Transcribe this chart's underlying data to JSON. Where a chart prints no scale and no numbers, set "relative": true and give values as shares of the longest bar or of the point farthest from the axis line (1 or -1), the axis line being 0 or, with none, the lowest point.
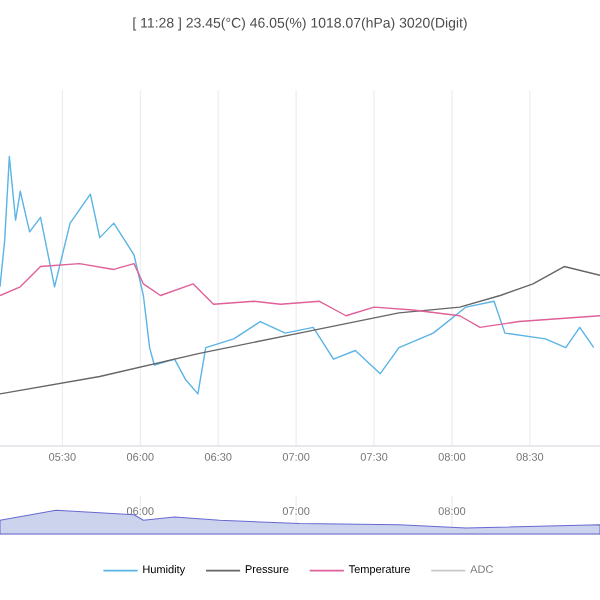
{
  "chart_data": [
    {
      "type": "line",
      "title": "[ 11:28 ] 23.45(°C) 46.05(%) 1018.07(hPa) 3020(Digit)",
      "relative": true,
      "grid": true,
      "legend": "bottom",
      "xlim": [
        5.1,
        8.95
      ],
      "xticks": [
        {
          "value": 5.5,
          "label": "05:30"
        },
        {
          "value": 6,
          "label": "06:00"
        },
        {
          "value": 6.5,
          "label": "06:30"
        },
        {
          "value": 7,
          "label": "07:00"
        },
        {
          "value": 7.5,
          "label": "07:30"
        },
        {
          "value": 8,
          "label": "08:00"
        },
        {
          "value": 8.5,
          "label": "08:30"
        }
      ],
      "series": [
        {
          "name": "Humidity",
          "color": "#5ab4e5",
          "x": [
            5.1,
            5.13,
            5.16,
            5.2,
            5.23,
            5.29,
            5.36,
            5.45,
            5.55,
            5.68,
            5.74,
            5.83,
            5.96,
            6.02,
            6.06,
            6.09,
            6.22,
            6.29,
            6.37,
            6.42,
            6.6,
            6.77,
            6.93,
            7.11,
            7.24,
            7.38,
            7.54,
            7.66,
            7.88,
            8.09,
            8.27,
            8.34,
            8.6,
            8.73,
            8.82,
            8.91
          ],
          "values": [
            0.55,
            0.71,
            1.0,
            0.78,
            0.88,
            0.74,
            0.79,
            0.55,
            0.77,
            0.87,
            0.72,
            0.77,
            0.66,
            0.52,
            0.34,
            0.28,
            0.3,
            0.23,
            0.18,
            0.34,
            0.37,
            0.43,
            0.39,
            0.41,
            0.3,
            0.33,
            0.25,
            0.34,
            0.39,
            0.48,
            0.5,
            0.39,
            0.37,
            0.34,
            0.41,
            0.34
          ]
        },
        {
          "name": "Pressure",
          "color": "#666666",
          "x": [
            5.1,
            5.74,
            6.38,
            7.02,
            7.66,
            8.05,
            8.31,
            8.52,
            8.72,
            8.95
          ],
          "values": [
            0.18,
            0.24,
            0.32,
            0.39,
            0.46,
            0.48,
            0.52,
            0.56,
            0.62,
            0.59
          ]
        },
        {
          "name": "Temperature",
          "color": "#e0609a",
          "x": [
            5.1,
            5.23,
            5.36,
            5.61,
            5.83,
            5.96,
            6.02,
            6.13,
            6.34,
            6.47,
            6.73,
            6.9,
            7.15,
            7.32,
            7.5,
            7.75,
            8.05,
            8.18,
            8.43,
            8.95
          ],
          "values": [
            0.52,
            0.55,
            0.62,
            0.63,
            0.61,
            0.63,
            0.56,
            0.52,
            0.56,
            0.49,
            0.5,
            0.49,
            0.5,
            0.45,
            0.48,
            0.47,
            0.45,
            0.41,
            0.43,
            0.45
          ]
        },
        {
          "name": "ADC",
          "color": "#c8c8c8",
          "values": [
            null
          ]
        }
      ]
    },
    {
      "type": "area",
      "relative": true,
      "grid": "x",
      "xlim": [
        5.1,
        8.95
      ],
      "xticks": [
        {
          "value": 6,
          "label": "06:00"
        },
        {
          "value": 7,
          "label": "07:00"
        },
        {
          "value": 8,
          "label": "08:00"
        }
      ],
      "series": [
        {
          "color": "#ccd3ec",
          "x": [
            5.1,
            5.46,
            5.96,
            6.02,
            6.22,
            6.51,
            7.02,
            7.66,
            8.09,
            8.95
          ],
          "values": [
            0.58,
            1.0,
            0.81,
            0.58,
            0.72,
            0.58,
            0.44,
            0.39,
            0.25,
            0.39
          ]
        }
      ]
    }
  ]
}
